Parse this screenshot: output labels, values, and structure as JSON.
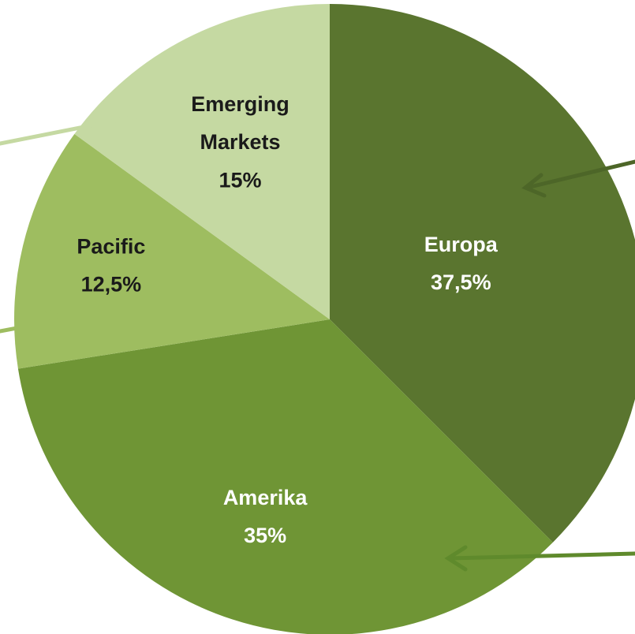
{
  "chart_data": {
    "type": "pie",
    "categories": [
      "Europa",
      "Amerika",
      "Pacific",
      "Emerging Markets"
    ],
    "values": [
      37.5,
      35,
      12.5,
      15
    ],
    "value_labels": [
      "37,5%",
      "35%",
      "12,5%",
      "15%"
    ],
    "colors": [
      "#5a752f",
      "#6f9535",
      "#9ebd60",
      "#c5d9a2"
    ],
    "label_colors": [
      "#ffffff",
      "#ffffff",
      "#1a1a1a",
      "#1a1a1a"
    ]
  }
}
